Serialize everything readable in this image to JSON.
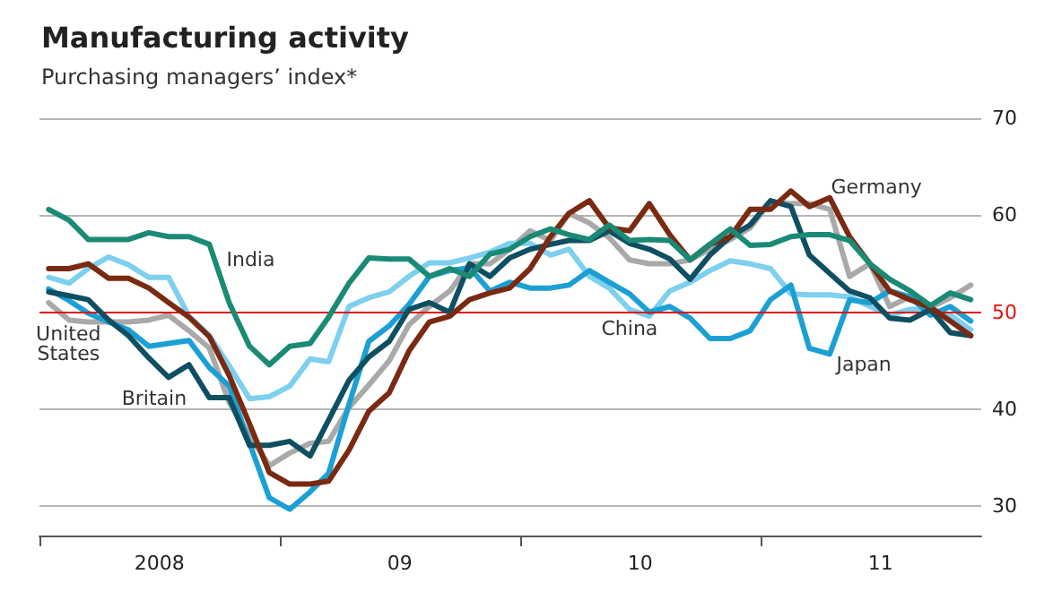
{
  "chart_data": {
    "type": "line",
    "title": "Manufacturing activity",
    "subtitle": "Purchasing managers’ index*",
    "x": [
      "2008-01-15",
      "2008-02-15",
      "2008-03-15",
      "2008-04-15",
      "2008-05-15",
      "2008-06-15",
      "2008-07-15",
      "2008-08-15",
      "2008-09-15",
      "2008-10-15",
      "2008-11-15",
      "2008-12-15",
      "2009-01-15",
      "2009-02-15",
      "2009-03-15",
      "2009-04-15",
      "2009-05-15",
      "2009-06-15",
      "2009-07-15",
      "2009-08-15",
      "2009-09-15",
      "2009-10-15",
      "2009-11-15",
      "2009-12-15",
      "2010-01-15",
      "2010-02-15",
      "2010-03-15",
      "2010-04-15",
      "2010-05-15",
      "2010-06-15",
      "2010-07-15",
      "2010-08-15",
      "2010-09-15",
      "2010-10-15",
      "2010-11-15",
      "2010-12-15",
      "2011-01-15",
      "2011-02-15",
      "2011-03-15",
      "2011-04-15",
      "2011-05-15",
      "2011-06-15",
      "2011-07-15",
      "2011-08-15",
      "2011-09-15",
      "2011-10-15",
      "2011-11-15"
    ],
    "series": [
      {
        "name": "United\nStates",
        "color": "#a9a9a9",
        "values": [
          51,
          49.2,
          49,
          49,
          49,
          49.2,
          49.7,
          48.1,
          46.3,
          40.7,
          37.3,
          34.2,
          35.5,
          36.5,
          36.7,
          40.2,
          42.5,
          45,
          48.7,
          50.6,
          52.2,
          55,
          55,
          56.5,
          58.4,
          57.4,
          60.2,
          59.2,
          57.7,
          55.4,
          55,
          55,
          55.4,
          56.5,
          57.5,
          58.7,
          61.4,
          61.2,
          61.2,
          60.6,
          53.7,
          55,
          50.6,
          51.6,
          50.5,
          51.5,
          52.8
        ]
      },
      {
        "name": "China",
        "color": "#7dd0ee",
        "values": [
          53.6,
          53,
          54.5,
          55.7,
          54.9,
          53.6,
          53.6,
          49.6,
          47.6,
          44.5,
          41.1,
          41.3,
          42.4,
          45.2,
          44.9,
          50.6,
          51.5,
          52.1,
          53.7,
          55.1,
          55.1,
          55.6,
          56.2,
          57.1,
          57.1,
          55.9,
          56.5,
          53.7,
          52.5,
          50.3,
          49.6,
          52.2,
          53.1,
          54.3,
          55.3,
          55,
          54.5,
          51.9,
          51.8,
          51.8,
          51.6,
          50.6,
          49.7,
          50.3,
          50.3,
          49.7,
          48.2
        ]
      },
      {
        "name": "Japan",
        "color": "#1ca0d4",
        "values": [
          52.4,
          51.2,
          49.9,
          49,
          48.2,
          46.5,
          46.8,
          47.1,
          44.3,
          42.4,
          36.5,
          30.9,
          29.7,
          31.5,
          33.4,
          40.5,
          47,
          48.6,
          50.8,
          53.7,
          54.3,
          54.6,
          52.2,
          53.1,
          52.5,
          52.5,
          52.8,
          54.3,
          53.1,
          51.9,
          50,
          50.6,
          49.4,
          47.3,
          47.3,
          48.1,
          51.3,
          52.8,
          46.3,
          45.7,
          51.3,
          51,
          52.2,
          51.6,
          49.7,
          50.6,
          49.1
        ]
      },
      {
        "name": "Britain",
        "color": "#0f4f62",
        "values": [
          52.1,
          51.7,
          51.3,
          49.2,
          47.6,
          45.3,
          43.3,
          44.6,
          41.2,
          41.2,
          36.3,
          36.3,
          36.7,
          35.2,
          38.9,
          43,
          45.4,
          47,
          50.3,
          51,
          50,
          55,
          53.7,
          55.6,
          56.5,
          57,
          57.4,
          57.4,
          58.4,
          57.1,
          56.5,
          55.5,
          53.4,
          55.9,
          57.8,
          59,
          61.5,
          60.9,
          55.9,
          54,
          52.2,
          51.5,
          49.4,
          49.2,
          50.3,
          47.9,
          47.6
        ]
      },
      {
        "name": "Germany",
        "color": "#7a2a12",
        "values": [
          54.5,
          54.5,
          55,
          53.5,
          53.5,
          52.5,
          51,
          49.5,
          47.5,
          43.5,
          38.5,
          33.5,
          32.3,
          32.3,
          32.6,
          35.8,
          39.8,
          41.7,
          46,
          49,
          49.6,
          51.3,
          52,
          52.5,
          54.5,
          57.8,
          60.2,
          61.5,
          58.7,
          58.4,
          61.2,
          58,
          55.4,
          57,
          57.8,
          60.6,
          60.6,
          62.5,
          60.9,
          61.8,
          57.8,
          55,
          52.2,
          51.3,
          50.5,
          49.1,
          47.6
        ]
      },
      {
        "name": "India",
        "color": "#1a8a75",
        "values": [
          60.6,
          59.5,
          57.5,
          57.5,
          57.5,
          58.2,
          57.8,
          57.8,
          57,
          51,
          46.5,
          44.6,
          46.5,
          46.8,
          49.5,
          53,
          55.6,
          55.5,
          55.5,
          53.7,
          54.5,
          53.7,
          56,
          56.5,
          57.8,
          58.6,
          58,
          57.5,
          59,
          57.4,
          57.5,
          57.4,
          55.4,
          57,
          58.6,
          56.9,
          57,
          57.8,
          58,
          58,
          57.4,
          55,
          53.4,
          52.2,
          50.7,
          52,
          51.3
        ]
      }
    ],
    "xlim": [
      "2008-01-01",
      "2011-12-01"
    ],
    "xticks": [
      {
        "value": "2008-01-01",
        "label": null
      },
      {
        "value": "2008-07-01",
        "label": "2008"
      },
      {
        "value": "2009-01-01",
        "label": null
      },
      {
        "value": "2009-07-01",
        "label": "09"
      },
      {
        "value": "2010-01-01",
        "label": null
      },
      {
        "value": "2010-07-01",
        "label": "10"
      },
      {
        "value": "2011-01-01",
        "label": null
      },
      {
        "value": "2011-07-01",
        "label": "11"
      }
    ],
    "ylim": [
      27,
      70
    ],
    "yticks": [
      30,
      40,
      50,
      60,
      70
    ],
    "grid": "y",
    "marker": "none",
    "line_style": "solid",
    "ref_lines": [
      {
        "axis": "y",
        "value": 50,
        "color": "#e3120b"
      }
    ]
  }
}
